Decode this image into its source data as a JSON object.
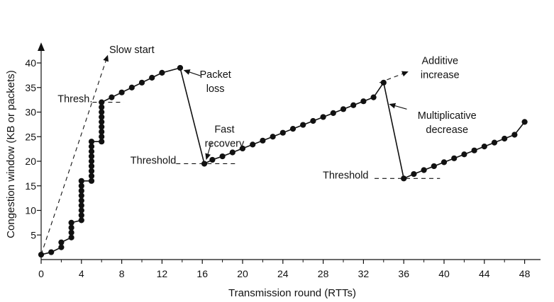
{
  "chart_data": {
    "type": "line",
    "title": "",
    "xlabel": "Transmission round (RTTs)",
    "ylabel": "Congestion window (KB or packets)",
    "xlim": [
      0,
      49
    ],
    "ylim": [
      0,
      43
    ],
    "xticks": [
      0,
      4,
      8,
      12,
      16,
      20,
      24,
      28,
      32,
      36,
      40,
      44,
      48
    ],
    "yticks": [
      5,
      10,
      15,
      20,
      25,
      30,
      35,
      40
    ],
    "grid": false,
    "legend": "none",
    "series": [
      {
        "points": [
          [
            0,
            1
          ],
          [
            1,
            1.5
          ],
          [
            2,
            2.5
          ],
          [
            2,
            3.5
          ],
          [
            3,
            4.5
          ],
          [
            3,
            5.5
          ],
          [
            3,
            6.5
          ],
          [
            3,
            7.5
          ],
          [
            4,
            8
          ],
          [
            4,
            9
          ],
          [
            4,
            10
          ],
          [
            4,
            11
          ],
          [
            4,
            12
          ],
          [
            4,
            13
          ],
          [
            4,
            14
          ],
          [
            4,
            15
          ],
          [
            4,
            16
          ],
          [
            5,
            16
          ],
          [
            5,
            17
          ],
          [
            5,
            18
          ],
          [
            5,
            19
          ],
          [
            5,
            20
          ],
          [
            5,
            21
          ],
          [
            5,
            22
          ],
          [
            5,
            23
          ],
          [
            5,
            24
          ],
          [
            6,
            24
          ],
          [
            6,
            25
          ],
          [
            6,
            26
          ],
          [
            6,
            27
          ],
          [
            6,
            28
          ],
          [
            6,
            29
          ],
          [
            6,
            30
          ],
          [
            6,
            31
          ],
          [
            6,
            32
          ],
          [
            7,
            33
          ],
          [
            8,
            34
          ],
          [
            9,
            35
          ],
          [
            10,
            36
          ],
          [
            11,
            37
          ],
          [
            12,
            38
          ],
          [
            13.8,
            39
          ],
          [
            16.2,
            19.5
          ],
          [
            17,
            20.3
          ],
          [
            18,
            21
          ],
          [
            19,
            21.8
          ],
          [
            20,
            22.6
          ],
          [
            21,
            23.4
          ],
          [
            22,
            24.2
          ],
          [
            23,
            25
          ],
          [
            24,
            25.8
          ],
          [
            25,
            26.6
          ],
          [
            26,
            27.4
          ],
          [
            27,
            28.2
          ],
          [
            28,
            29
          ],
          [
            29,
            29.8
          ],
          [
            30,
            30.6
          ],
          [
            31,
            31.4
          ],
          [
            32,
            32.2
          ],
          [
            33,
            33
          ],
          [
            34,
            36
          ],
          [
            36,
            16.5
          ],
          [
            37,
            17.4
          ],
          [
            38,
            18.2
          ],
          [
            39,
            19
          ],
          [
            40,
            19.8
          ],
          [
            41,
            20.6
          ],
          [
            42,
            21.4
          ],
          [
            43,
            22.2
          ],
          [
            44,
            23
          ],
          [
            45,
            23.8
          ],
          [
            46,
            24.6
          ],
          [
            47,
            25.4
          ],
          [
            48,
            28
          ]
        ]
      }
    ],
    "annotations": [
      {
        "text": [
          "Slow start"
        ],
        "x": 9,
        "y": 42
      },
      {
        "text": [
          "Thresh."
        ],
        "x": 5.1,
        "y": 32
      },
      {
        "text": [
          "Packet",
          "loss"
        ],
        "x": 17.3,
        "y": 37
      },
      {
        "text": [
          "Fast",
          "recovery"
        ],
        "x": 18.2,
        "y": 25.8
      },
      {
        "text": [
          "Threshold"
        ],
        "x": 13.4,
        "y": 19.5
      },
      {
        "text": [
          "Additive",
          "increase"
        ],
        "x": 39.6,
        "y": 39.8
      },
      {
        "text": [
          "Multiplicative",
          "decrease"
        ],
        "x": 40.3,
        "y": 28.6
      },
      {
        "text": [
          "Threshold"
        ],
        "x": 32.5,
        "y": 16.5
      }
    ]
  }
}
